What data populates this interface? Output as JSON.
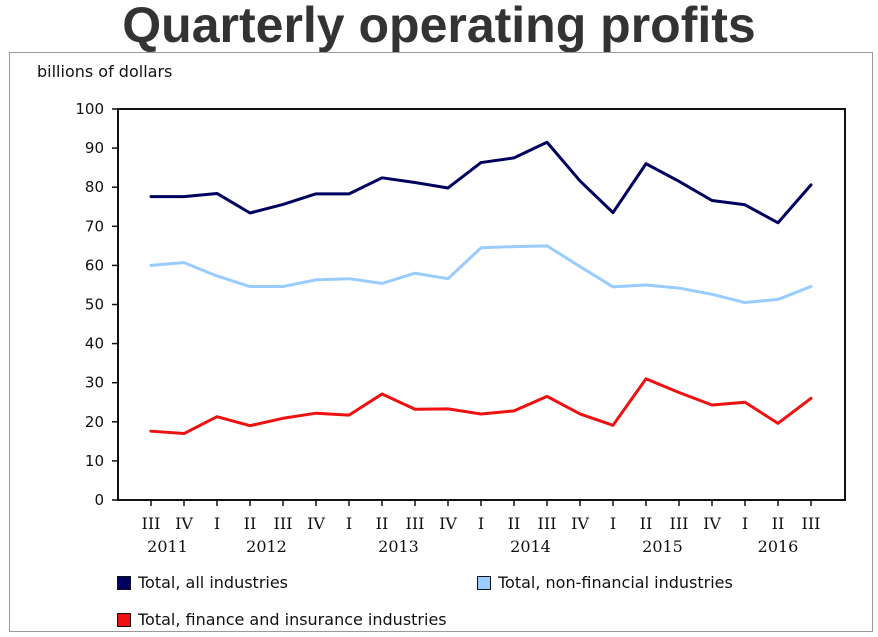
{
  "title": "Quarterly operating profits",
  "chart_data": {
    "type": "line",
    "ylabel": "billions of dollars",
    "ylim": [
      0,
      100
    ],
    "yticks": [
      "100",
      "90",
      "80",
      "70",
      "60",
      "50",
      "40",
      "30",
      "20",
      "10",
      "0"
    ],
    "categories": [
      "III",
      "IV",
      "I",
      "II",
      "III",
      "IV",
      "I",
      "II",
      "III",
      "IV",
      "I",
      "II",
      "III",
      "IV",
      "I",
      "II",
      "III",
      "IV",
      "I",
      "II",
      "III"
    ],
    "years": [
      {
        "label": "2011",
        "from": 0,
        "to": 1
      },
      {
        "label": "2012",
        "from": 2,
        "to": 5
      },
      {
        "label": "2013",
        "from": 6,
        "to": 9
      },
      {
        "label": "2014",
        "from": 10,
        "to": 13
      },
      {
        "label": "2015",
        "from": 14,
        "to": 17
      },
      {
        "label": "2016",
        "from": 18,
        "to": 20
      }
    ],
    "series": [
      {
        "name": "Total, all industries",
        "color": "#00005e",
        "values": [
          77.6,
          77.6,
          78.4,
          73.4,
          75.6,
          78.3,
          78.3,
          82.4,
          81.2,
          79.8,
          86.3,
          87.5,
          91.5,
          81.6,
          73.5,
          86.0,
          81.5,
          76.6,
          75.5,
          70.9,
          80.6
        ]
      },
      {
        "name": "Total, non-financial industries",
        "color": "#99ccff",
        "values": [
          60.0,
          60.7,
          57.3,
          54.6,
          54.6,
          56.3,
          56.6,
          55.4,
          58.0,
          56.6,
          64.5,
          64.8,
          65.0,
          59.7,
          54.5,
          55.0,
          54.2,
          52.6,
          50.5,
          51.3,
          54.6
        ]
      },
      {
        "name": "Total, finance and insurance industries",
        "color": "#ee1111",
        "values": [
          17.6,
          17.0,
          21.3,
          19.0,
          20.9,
          22.2,
          21.7,
          27.1,
          23.2,
          23.3,
          22.0,
          22.8,
          26.5,
          22.0,
          19.1,
          31.0,
          27.5,
          24.3,
          25.0,
          19.6,
          26.0
        ]
      }
    ]
  }
}
